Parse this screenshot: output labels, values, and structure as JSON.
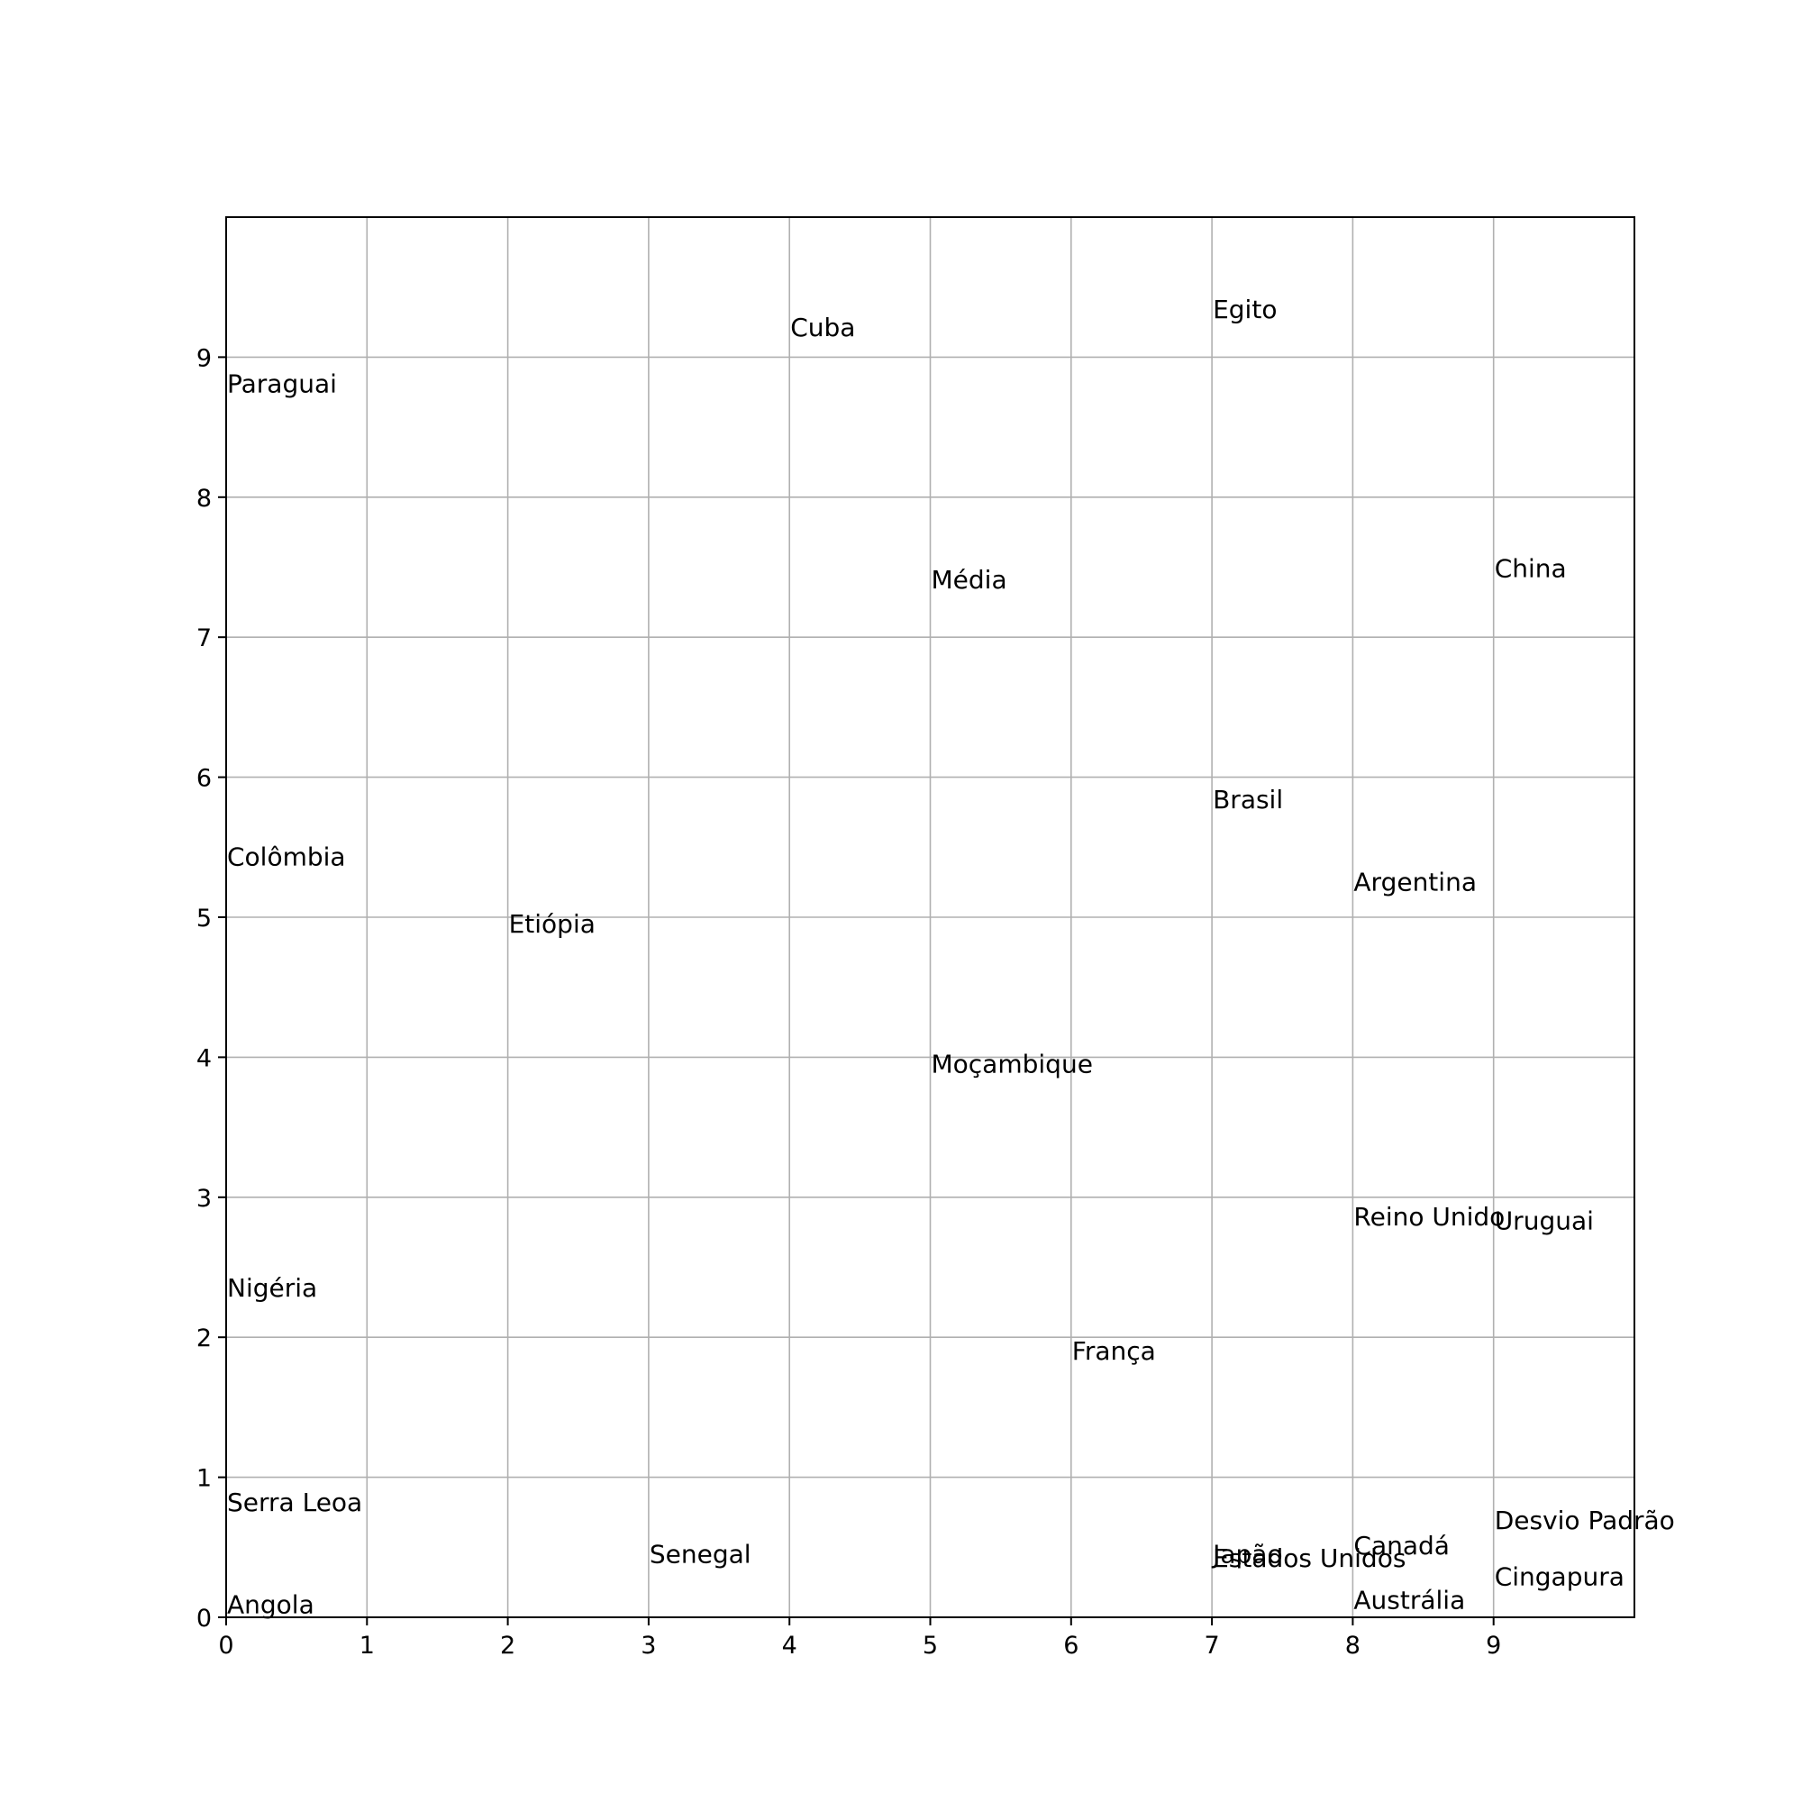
{
  "chart_data": {
    "type": "scatter",
    "title": "",
    "xlabel": "",
    "ylabel": "",
    "xlim": [
      0,
      10
    ],
    "ylim": [
      0,
      10
    ],
    "x_ticks": [
      "0",
      "1",
      "2",
      "3",
      "4",
      "5",
      "6",
      "7",
      "8",
      "9"
    ],
    "y_ticks": [
      "0",
      "1",
      "2",
      "3",
      "4",
      "5",
      "6",
      "7",
      "8",
      "9"
    ],
    "grid": true,
    "points": [
      {
        "label": "Paraguai",
        "x": 0,
        "y": 8.75
      },
      {
        "label": "Cuba",
        "x": 4,
        "y": 9.15
      },
      {
        "label": "Egito",
        "x": 7,
        "y": 9.28
      },
      {
        "label": "Média",
        "x": 5,
        "y": 7.35
      },
      {
        "label": "China",
        "x": 9,
        "y": 7.43
      },
      {
        "label": "Colômbia",
        "x": 0,
        "y": 5.37
      },
      {
        "label": "Brasil",
        "x": 7,
        "y": 5.78
      },
      {
        "label": "Argentina",
        "x": 8,
        "y": 5.19
      },
      {
        "label": "Etiópia",
        "x": 2,
        "y": 4.89
      },
      {
        "label": "Moçambique",
        "x": 5,
        "y": 3.89
      },
      {
        "label": "Reino Unido",
        "x": 8,
        "y": 2.8
      },
      {
        "label": "Uruguai",
        "x": 9,
        "y": 2.77
      },
      {
        "label": "Nigéria",
        "x": 0,
        "y": 2.29
      },
      {
        "label": "França",
        "x": 6,
        "y": 1.84
      },
      {
        "label": "Serra Leoa",
        "x": 0,
        "y": 0.76
      },
      {
        "label": "Desvio Padrão",
        "x": 9,
        "y": 0.63
      },
      {
        "label": "Canadá",
        "x": 8,
        "y": 0.45
      },
      {
        "label": "Senegal",
        "x": 3,
        "y": 0.39
      },
      {
        "label": "Japão",
        "x": 7,
        "y": 0.39
      },
      {
        "label": "Estados Unidos",
        "x": 7,
        "y": 0.36
      },
      {
        "label": "Cingapura",
        "x": 9,
        "y": 0.23
      },
      {
        "label": "Angola",
        "x": 0,
        "y": 0.03
      },
      {
        "label": "Austrália",
        "x": 8,
        "y": 0.06
      }
    ]
  }
}
